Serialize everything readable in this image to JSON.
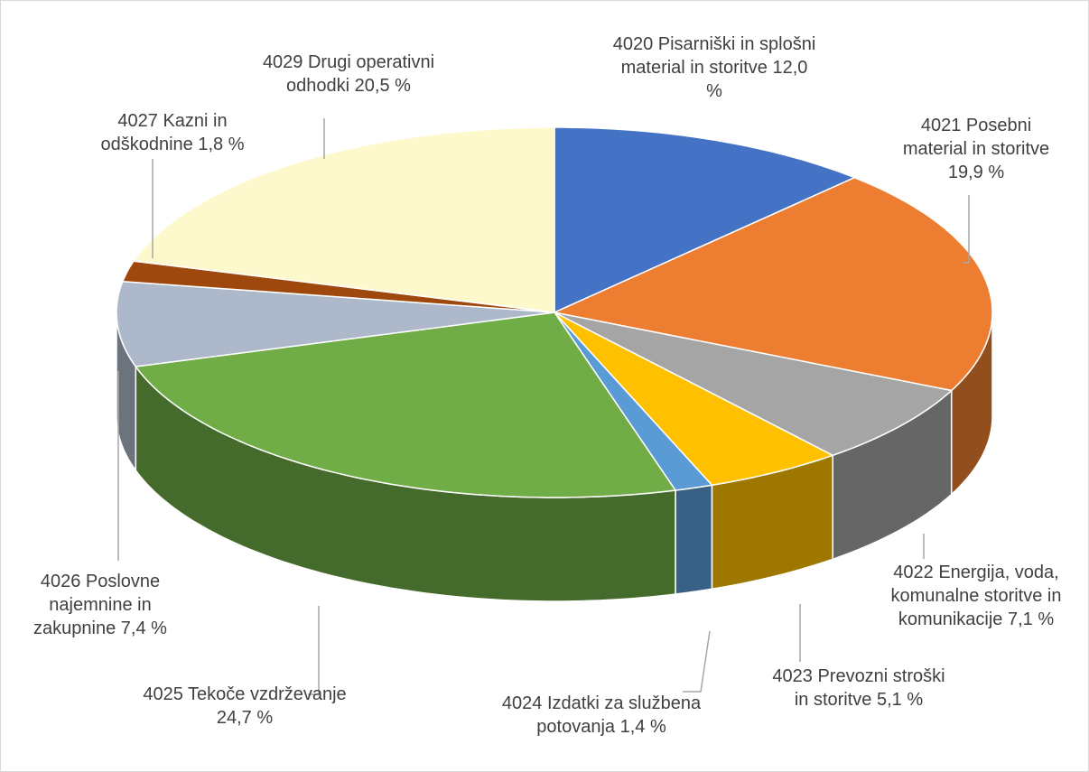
{
  "chart_data": {
    "type": "pie3d",
    "categories": [
      "4020 Pisarniški in splošni material in storitve",
      "4021 Posebni material in storitve",
      "4022 Energija, voda, komunalne storitve in komunikacije",
      "4023 Prevozni stroški in storitve",
      "4024 Izdatki za službena potovanja",
      "4025 Tekoče vzdrževanje",
      "4026 Poslovne najemnine in zakupnine",
      "4027 Kazni in odškodnine",
      "4029 Drugi operativni odhodki"
    ],
    "values": [
      12.0,
      19.9,
      7.1,
      5.1,
      1.4,
      24.7,
      7.4,
      1.8,
      20.5
    ],
    "value_labels": [
      "12,0 %",
      "19,9 %",
      "7,1 %",
      "5,1 %",
      "1,4 %",
      "24,7 %",
      "7,4 %",
      "1,8 %",
      "20,5 %"
    ],
    "colors": [
      "#4472c4",
      "#ed7d31",
      "#a5a5a5",
      "#ffc000",
      "#5b9bd5",
      "#70ad47",
      "#adb9ca",
      "#9e480e",
      "#fdf9cc"
    ]
  }
}
